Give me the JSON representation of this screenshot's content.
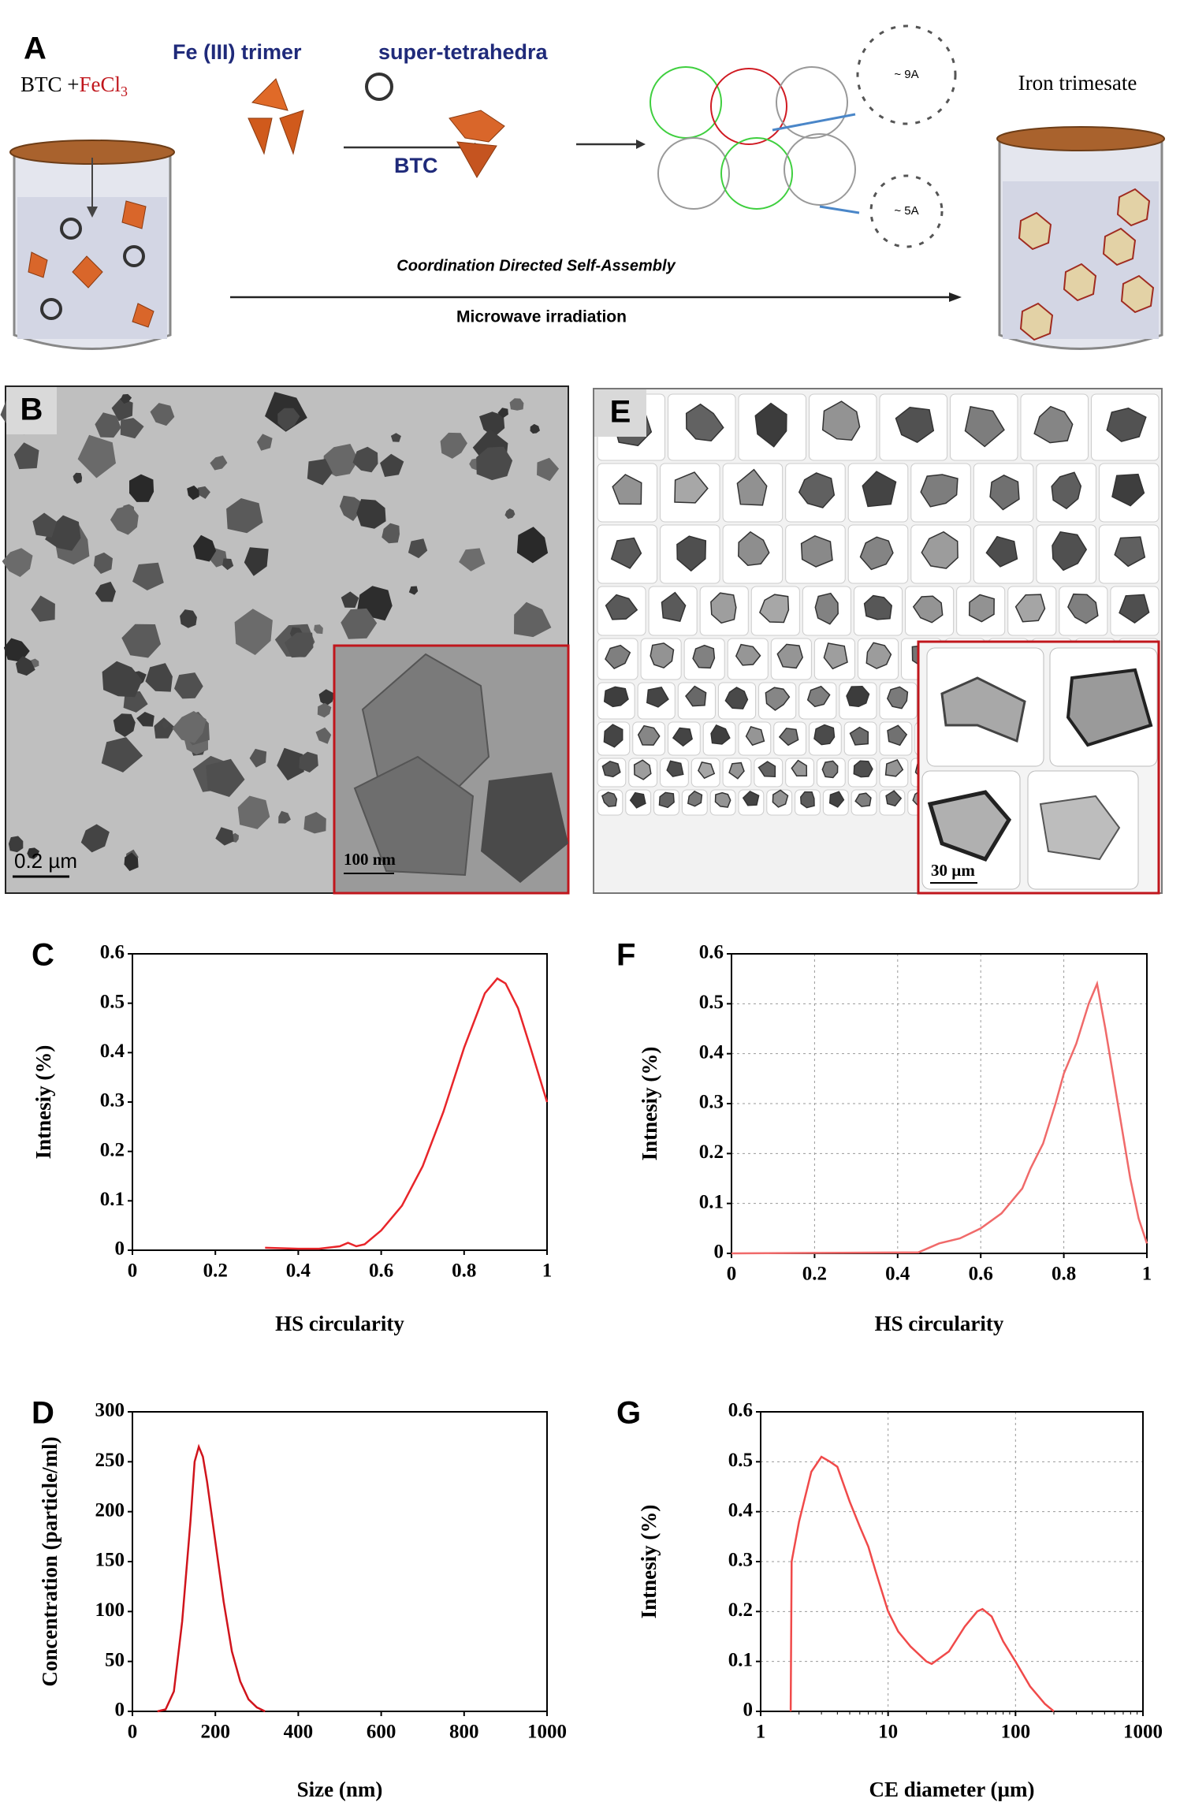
{
  "panel_a": {
    "label": "A",
    "reactants": [
      "BTC +",
      "FeCl",
      "3"
    ],
    "trimer": "Fe (III) trimer",
    "tetrahedra": "super-tetrahedra",
    "linker": "BTC",
    "assembly": "Coordination Directed Self-Assembly",
    "method": "Microwave irradiation",
    "product": "Iron trimesate",
    "pore_large": "~ 9A",
    "pore_small": "~ 5A"
  },
  "panel_b": {
    "label": "B",
    "scale": "0.2 µm",
    "inset_scale": "100 nm"
  },
  "panel_e": {
    "label": "E",
    "inset_scale": "30 µm"
  },
  "chart_data": [
    {
      "type": "line",
      "panel": "C",
      "x_label": "HS circularity",
      "y_label": "Intnesiy (%)",
      "xlim": [
        0,
        1
      ],
      "ylim": [
        0,
        0.6
      ],
      "xticks": [
        0,
        0.2,
        0.4,
        0.6,
        0.8,
        1
      ],
      "yticks": [
        0,
        0.1,
        0.2,
        0.3,
        0.4,
        0.5,
        0.6
      ],
      "grid": false,
      "xscale": "linear",
      "x": [
        0.32,
        0.4,
        0.45,
        0.5,
        0.52,
        0.54,
        0.56,
        0.6,
        0.65,
        0.7,
        0.75,
        0.8,
        0.85,
        0.88,
        0.9,
        0.93,
        0.96,
        1.0
      ],
      "series": [
        {
          "color": "#e8252a",
          "values": [
            0.005,
            0.003,
            0.003,
            0.008,
            0.015,
            0.008,
            0.012,
            0.04,
            0.09,
            0.17,
            0.28,
            0.41,
            0.52,
            0.55,
            0.54,
            0.49,
            0.41,
            0.3
          ]
        }
      ]
    },
    {
      "type": "line",
      "panel": "D",
      "x_label": "Size (nm)",
      "y_label": "Concentration (particle/ml)",
      "xlim": [
        0,
        1000
      ],
      "ylim": [
        0,
        300
      ],
      "xticks": [
        0,
        200,
        400,
        600,
        800,
        1000
      ],
      "yticks": [
        0,
        50,
        100,
        150,
        200,
        250,
        300
      ],
      "grid": false,
      "xscale": "linear",
      "x": [
        60,
        80,
        100,
        120,
        140,
        150,
        160,
        170,
        180,
        200,
        220,
        240,
        260,
        280,
        300,
        320
      ],
      "series": [
        {
          "color": "#d0141c",
          "values": [
            0,
            2,
            20,
            90,
            190,
            250,
            265,
            255,
            230,
            170,
            110,
            60,
            30,
            12,
            4,
            0
          ]
        }
      ]
    },
    {
      "type": "line",
      "panel": "F",
      "x_label": "HS circularity",
      "y_label": "Intnesiy (%)",
      "xlim": [
        0,
        1
      ],
      "ylim": [
        0,
        0.6
      ],
      "xticks": [
        0,
        0.2,
        0.4,
        0.6,
        0.8,
        1
      ],
      "yticks": [
        0,
        0.1,
        0.2,
        0.3,
        0.4,
        0.5,
        0.6
      ],
      "grid": true,
      "xscale": "linear",
      "x": [
        0,
        0.45,
        0.5,
        0.55,
        0.6,
        0.65,
        0.7,
        0.72,
        0.75,
        0.78,
        0.8,
        0.83,
        0.86,
        0.88,
        0.9,
        0.93,
        0.96,
        0.98,
        1
      ],
      "series": [
        {
          "color": "#f06a6a",
          "values": [
            0,
            0.002,
            0.02,
            0.03,
            0.05,
            0.08,
            0.13,
            0.17,
            0.22,
            0.3,
            0.36,
            0.42,
            0.5,
            0.54,
            0.45,
            0.3,
            0.15,
            0.07,
            0.02
          ]
        }
      ]
    },
    {
      "type": "line",
      "panel": "G",
      "x_label": "CE diameter (µm)",
      "y_label": "Intnesiy (%)",
      "xlim": [
        1,
        1000
      ],
      "ylim": [
        0,
        0.6
      ],
      "xticks": [
        1,
        10,
        100,
        1000
      ],
      "yticks": [
        0,
        0.1,
        0.2,
        0.3,
        0.4,
        0.5,
        0.6
      ],
      "grid": true,
      "xscale": "log",
      "x": [
        1.72,
        1.75,
        2,
        2.5,
        3,
        3.5,
        4,
        5,
        6,
        7,
        8,
        10,
        12,
        15,
        20,
        22,
        30,
        40,
        50,
        55,
        65,
        80,
        100,
        130,
        170,
        200
      ],
      "series": [
        {
          "color": "#f04a4a",
          "values": [
            0,
            0.3,
            0.38,
            0.48,
            0.51,
            0.5,
            0.49,
            0.42,
            0.37,
            0.33,
            0.28,
            0.2,
            0.16,
            0.13,
            0.1,
            0.095,
            0.12,
            0.17,
            0.2,
            0.205,
            0.19,
            0.14,
            0.1,
            0.05,
            0.015,
            0
          ]
        }
      ]
    }
  ]
}
